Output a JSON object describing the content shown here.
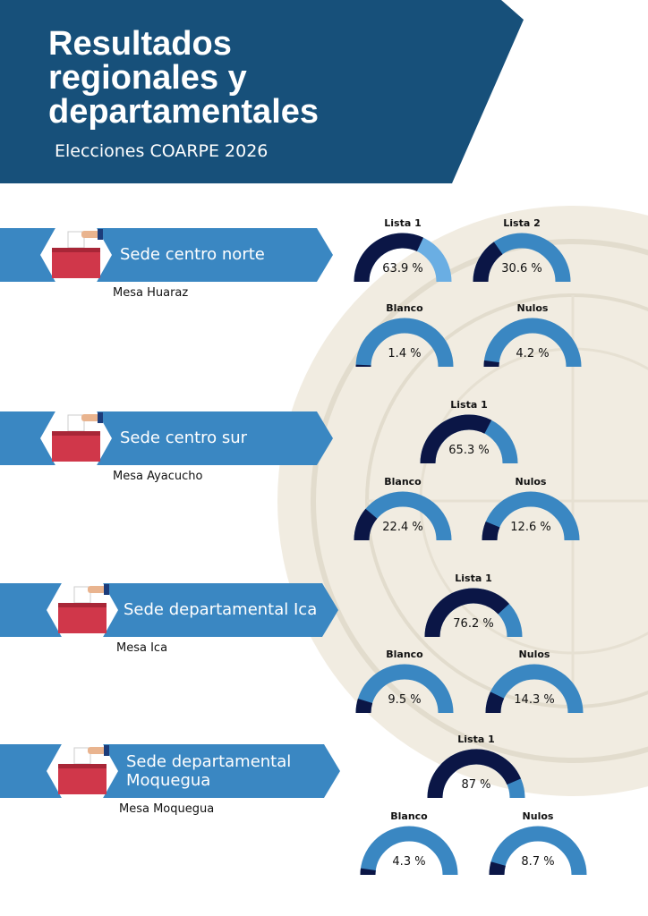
{
  "header": {
    "title": "Resultados regionales y departamentales",
    "subtitle": "Elecciones COARPE 2026"
  },
  "gauge_scale": [
    0,
    100
  ],
  "fill_color": "#0b1646",
  "track_color": "#3a87c2",
  "sections": [
    {
      "name": "Sede centro norte",
      "mesa": "Mesa Huaraz",
      "gauges": [
        {
          "label": "Lista 1",
          "value": 63.9,
          "value_label": "63.9 %",
          "track_color": "#6aaee3"
        },
        {
          "label": "Lista 2",
          "value": 30.6,
          "value_label": "30.6 %"
        },
        {
          "label": "Blanco",
          "value": 1.4,
          "value_label": "1.4 %"
        },
        {
          "label": "Nulos",
          "value": 4.2,
          "value_label": "4.2 %"
        }
      ]
    },
    {
      "name": "Sede centro sur",
      "mesa": "Mesa Ayacucho",
      "gauges": [
        {
          "label": "Lista 1",
          "value": 65.3,
          "value_label": "65.3 %"
        },
        {
          "label": "Blanco",
          "value": 22.4,
          "value_label": "22.4 %"
        },
        {
          "label": "Nulos",
          "value": 12.6,
          "value_label": "12.6 %"
        }
      ]
    },
    {
      "name": "Sede departamental Ica",
      "mesa": "Mesa Ica",
      "gauges": [
        {
          "label": "Lista 1",
          "value": 76.2,
          "value_label": "76.2 %"
        },
        {
          "label": "Blanco",
          "value": 9.5,
          "value_label": "9.5 %"
        },
        {
          "label": "Nulos",
          "value": 14.3,
          "value_label": "14.3 %"
        }
      ]
    },
    {
      "name": "Sede departamental Moquegua",
      "mesa": "Mesa Moquegua",
      "gauges": [
        {
          "label": "Lista 1",
          "value": 87,
          "value_label": "87 %"
        },
        {
          "label": "Blanco",
          "value": 4.3,
          "value_label": "4.3 %"
        },
        {
          "label": "Nulos",
          "value": 8.7,
          "value_label": "8.7 %"
        }
      ]
    }
  ]
}
